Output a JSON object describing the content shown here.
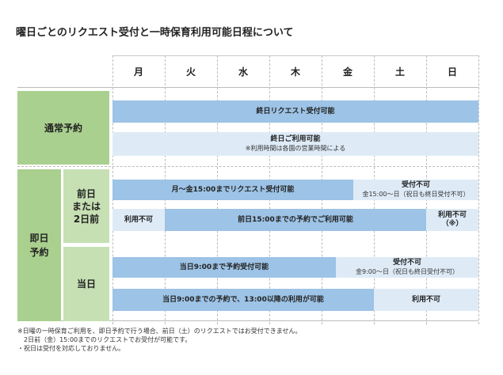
{
  "title": "曜日ごとのリクエスト受付と一時保育利用可能日程について",
  "days": [
    "月",
    "火",
    "水",
    "木",
    "金",
    "土",
    "日"
  ],
  "sections": {
    "normal": {
      "label": "通常予約",
      "row1": {
        "text": "終日リクエスト受付可能"
      },
      "row2": {
        "text": "終日ご利用可能",
        "sub": "※利用時間は各園の営業時間による"
      }
    },
    "sameday": {
      "label": "即日予約",
      "prevday": {
        "label": "前日または2日前",
        "label_lines": [
          "前日",
          "または",
          "2日前"
        ],
        "row1": {
          "main": "月～金15:00までリクエスト受付可能",
          "side": "受付不可",
          "side_sub": "金15:00～日（祝日も終日受付不可）"
        },
        "row2": {
          "left": "利用不可",
          "main": "前日15:00までの予約でご利用可能",
          "right": "利用不可",
          "right_sub": "（※）"
        }
      },
      "today": {
        "label": "当日",
        "row1": {
          "main": "当日9:00まで予約受付可能",
          "side": "受付不可",
          "side_sub": "金9:00～日（祝日も終日受付不可）"
        },
        "row2": {
          "main": "当日9:00までの予約で、13:00以降の利用が可能",
          "side": "利用不可"
        }
      }
    }
  },
  "notes": [
    "※日曜の一時保育ご利用を、即日予約で行う場合、前日（土）のリクエストではお受付できません。",
    "　2日前（金）15:00までのリクエストでお受付が可能です。",
    "・祝日は受付を対応しておりません。"
  ],
  "colors": {
    "green_dark": "#a9d08e",
    "green_light": "#c6e0b4",
    "blue": "#9dc3e6",
    "pale_blue": "#deebf7"
  }
}
